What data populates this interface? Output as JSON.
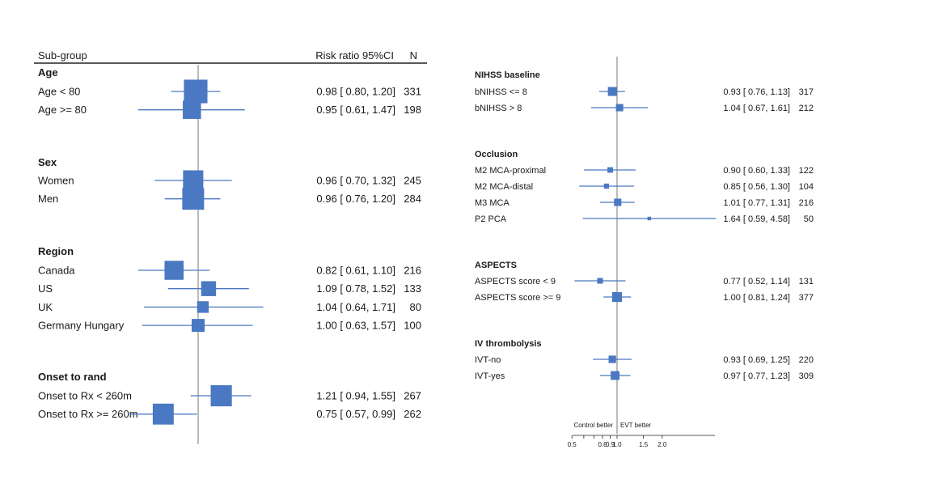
{
  "chart_data": [
    {
      "type": "forest",
      "header": {
        "subgroup": "Sub-group",
        "ci": "Risk ratio 95%CI",
        "n": "N"
      },
      "groups": [
        {
          "title": "Age",
          "rows": [
            {
              "label": "Age < 80",
              "estimate": 0.98,
              "low": 0.8,
              "high": 1.2,
              "n": 331,
              "text": "0.98 [ 0.80,  1.20]"
            },
            {
              "label": "Age >= 80",
              "estimate": 0.95,
              "low": 0.61,
              "high": 1.47,
              "n": 198,
              "text": "0.95 [ 0.61,  1.47]"
            }
          ]
        },
        {
          "title": "Sex",
          "rows": [
            {
              "label": "Women",
              "estimate": 0.96,
              "low": 0.7,
              "high": 1.32,
              "n": 245,
              "text": "0.96 [ 0.70,  1.32]"
            },
            {
              "label": "Men",
              "estimate": 0.96,
              "low": 0.76,
              "high": 1.2,
              "n": 284,
              "text": "0.96 [ 0.76,  1.20]"
            }
          ]
        },
        {
          "title": "Region",
          "rows": [
            {
              "label": "Canada",
              "estimate": 0.82,
              "low": 0.61,
              "high": 1.1,
              "n": 216,
              "text": "0.82 [ 0.61,  1.10]"
            },
            {
              "label": "US",
              "estimate": 1.09,
              "low": 0.78,
              "high": 1.52,
              "n": 133,
              "text": "1.09 [ 0.78,  1.52]"
            },
            {
              "label": "UK",
              "estimate": 1.04,
              "low": 0.64,
              "high": 1.71,
              "n": 80,
              "text": "1.04 [ 0.64,  1.71]"
            },
            {
              "label": "Germany Hungary",
              "estimate": 1.0,
              "low": 0.63,
              "high": 1.57,
              "n": 100,
              "text": "1.00 [ 0.63,  1.57]"
            }
          ]
        },
        {
          "title": "Onset to rand",
          "rows": [
            {
              "label": "Onset to Rx < 260m",
              "estimate": 1.21,
              "low": 0.94,
              "high": 1.55,
              "n": 267,
              "text": "1.21 [ 0.94,  1.55]"
            },
            {
              "label": "Onset to Rx >= 260m",
              "estimate": 0.75,
              "low": 0.57,
              "high": 0.99,
              "n": 262,
              "text": "0.75 [ 0.57,  0.99]"
            }
          ]
        }
      ]
    },
    {
      "type": "forest",
      "groups": [
        {
          "title": "NIHSS baseline",
          "rows": [
            {
              "label": "bNIHSS <= 8",
              "estimate": 0.93,
              "low": 0.76,
              "high": 1.13,
              "n": 317,
              "text": "0.93 [ 0.76,  1.13]"
            },
            {
              "label": "bNIHSS > 8",
              "estimate": 1.04,
              "low": 0.67,
              "high": 1.61,
              "n": 212,
              "text": "1.04 [ 0.67,  1.61]"
            }
          ]
        },
        {
          "title": "Occlusion",
          "rows": [
            {
              "label": "M2 MCA-proximal",
              "estimate": 0.9,
              "low": 0.6,
              "high": 1.33,
              "n": 122,
              "text": "0.90 [ 0.60,  1.33]"
            },
            {
              "label": "M2 MCA-distal",
              "estimate": 0.85,
              "low": 0.56,
              "high": 1.3,
              "n": 104,
              "text": "0.85 [ 0.56,  1.30]"
            },
            {
              "label": "M3 MCA",
              "estimate": 1.01,
              "low": 0.77,
              "high": 1.31,
              "n": 216,
              "text": "1.01 [ 0.77,  1.31]"
            },
            {
              "label": "P2 PCA",
              "estimate": 1.64,
              "low": 0.59,
              "high": 4.58,
              "n": 50,
              "text": "1.64 [ 0.59,  4.58]"
            }
          ]
        },
        {
          "title": "ASPECTS",
          "rows": [
            {
              "label": "ASPECTS score < 9",
              "estimate": 0.77,
              "low": 0.52,
              "high": 1.14,
              "n": 131,
              "text": "0.77 [ 0.52,  1.14]"
            },
            {
              "label": "ASPECTS score >= 9",
              "estimate": 1.0,
              "low": 0.81,
              "high": 1.24,
              "n": 377,
              "text": "1.00 [ 0.81,  1.24]"
            }
          ]
        },
        {
          "title": "IV thrombolysis",
          "rows": [
            {
              "label": "IVT-no",
              "estimate": 0.93,
              "low": 0.69,
              "high": 1.25,
              "n": 220,
              "text": "0.93 [ 0.69,  1.25]"
            },
            {
              "label": "IVT-yes",
              "estimate": 0.97,
              "low": 0.77,
              "high": 1.23,
              "n": 309,
              "text": "0.97 [ 0.77,  1.23]"
            }
          ]
        }
      ],
      "axis": {
        "scale": "log",
        "ticks": [
          0.5,
          0.8,
          0.9,
          1.0,
          1.5,
          2.0
        ],
        "tick_labels": [
          "0.5",
          "0.8",
          "0.9",
          "1.0",
          "1.5",
          "2.0"
        ],
        "minor_ticks": [
          0.6,
          0.7
        ],
        "range": [
          0.5,
          4.58
        ],
        "left_note": "Control better",
        "right_note": "EVT better"
      }
    }
  ],
  "colors": {
    "marker": "#4a78c2",
    "ref_line": "#777777",
    "text": "#1a1a1a",
    "rule": "#222222"
  }
}
